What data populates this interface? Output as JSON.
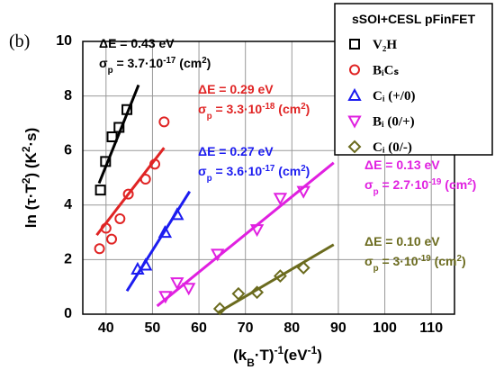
{
  "chart_data": {
    "type": "scatter",
    "panel_label": "(b)",
    "legend_title": "sSOI+CESL pFinFET",
    "legend": "upper right",
    "grid": true,
    "xlim": [
      35,
      115
    ],
    "xticks": [
      40,
      50,
      60,
      70,
      80,
      90,
      100,
      110
    ],
    "ylim": [
      0,
      10
    ],
    "yticks": [
      0,
      2,
      4,
      6,
      8,
      10
    ],
    "x_label": [
      {
        "text": "(k"
      },
      {
        "text": "B",
        "shift": "sub"
      },
      {
        "text": "·T)"
      },
      {
        "text": "-1",
        "shift": "super"
      },
      {
        "text": "(eV"
      },
      {
        "text": "-1",
        "shift": "super"
      },
      {
        "text": ")"
      }
    ],
    "y_label": [
      {
        "text": "ln (τ·T"
      },
      {
        "text": "2",
        "shift": "super"
      },
      {
        "text": ") (K"
      },
      {
        "text": "2",
        "shift": "super"
      },
      {
        "text": "·s)"
      }
    ],
    "series": [
      {
        "name": "V₂H",
        "color": "#000000",
        "marker": "square",
        "x": [
          38.8,
          39.9,
          41.3,
          42.8,
          44.5
        ],
        "values": [
          4.55,
          5.6,
          6.5,
          6.85,
          7.5
        ],
        "fit": {
          "x": [
            38.5,
            47
          ],
          "values": [
            4.8,
            8.4
          ]
        }
      },
      {
        "name": "BᵢCₛ",
        "color": "#e02424",
        "marker": "circle",
        "x": [
          38.6,
          40,
          41.2,
          43,
          44.8,
          48.5,
          50.5,
          52.5
        ],
        "values": [
          2.4,
          3.15,
          2.75,
          3.5,
          4.4,
          4.95,
          5.5,
          7.05
        ],
        "fit": {
          "x": [
            38,
            52.5
          ],
          "values": [
            2.9,
            6.1
          ]
        }
      },
      {
        "name": "Cᵢ (+/0)",
        "color": "#1c1cf0",
        "marker": "triangle-up",
        "x": [
          46.8,
          48.5,
          52.7,
          55.3
        ],
        "values": [
          1.65,
          1.8,
          3.0,
          3.65
        ],
        "fit": {
          "x": [
            44.5,
            58
          ],
          "values": [
            0.85,
            4.5
          ]
        }
      },
      {
        "name": "Bᵢ (0/+)",
        "color": "#e020e0",
        "marker": "triangle-down",
        "x": [
          52.8,
          55.3,
          57.8,
          64,
          72.5,
          77.5,
          82.5
        ],
        "values": [
          0.65,
          1.15,
          0.95,
          2.2,
          3.1,
          4.25,
          4.5
        ],
        "fit": {
          "x": [
            51,
            89
          ],
          "values": [
            0.3,
            5.55
          ]
        }
      },
      {
        "name": "Cᵢ (0/-)",
        "color": "#6b6b1e",
        "marker": "diamond",
        "x": [
          64.5,
          68.5,
          72.5,
          77.5,
          82.5
        ],
        "values": [
          0.2,
          0.75,
          0.8,
          1.4,
          1.7
        ],
        "fit": {
          "x": [
            64,
            89
          ],
          "values": [
            0.05,
            2.55
          ]
        }
      }
    ],
    "annotations": [
      {
        "color": "#000000",
        "lines": [
          [
            {
              "text": "ΔE = 0.43 eV"
            }
          ],
          [
            {
              "text": "σ"
            },
            {
              "text": "p",
              "shift": "sub"
            },
            {
              "text": " = 3.7·10"
            },
            {
              "text": "-17",
              "shift": "super"
            },
            {
              "text": " (cm"
            },
            {
              "text": "2",
              "shift": "super"
            },
            {
              "text": ")"
            }
          ]
        ]
      },
      {
        "color": "#e02424",
        "lines": [
          [
            {
              "text": "ΔE = 0.29 eV"
            }
          ],
          [
            {
              "text": "σ"
            },
            {
              "text": "p",
              "shift": "sub"
            },
            {
              "text": " = 3.3·10"
            },
            {
              "text": "-18",
              "shift": "super"
            },
            {
              "text": " (cm"
            },
            {
              "text": "2",
              "shift": "super"
            },
            {
              "text": ")"
            }
          ]
        ]
      },
      {
        "color": "#1c1cf0",
        "lines": [
          [
            {
              "text": "ΔE = 0.27 eV"
            }
          ],
          [
            {
              "text": "σ"
            },
            {
              "text": "p",
              "shift": "sub"
            },
            {
              "text": " = 3.6·10"
            },
            {
              "text": "-17",
              "shift": "super"
            },
            {
              "text": " (cm"
            },
            {
              "text": "2",
              "shift": "super"
            },
            {
              "text": ")"
            }
          ]
        ]
      },
      {
        "color": "#e020e0",
        "lines": [
          [
            {
              "text": "ΔE = 0.13 eV"
            }
          ],
          [
            {
              "text": "σ"
            },
            {
              "text": "p",
              "shift": "sub"
            },
            {
              "text": " = 2.7·10"
            },
            {
              "text": "-19",
              "shift": "super"
            },
            {
              "text": " (cm"
            },
            {
              "text": "2",
              "shift": "super"
            },
            {
              "text": ")"
            }
          ]
        ]
      },
      {
        "color": "#6b6b1e",
        "lines": [
          [
            {
              "text": "ΔE = 0.10 eV"
            }
          ],
          [
            {
              "text": "σ"
            },
            {
              "text": "p",
              "shift": "sub"
            },
            {
              "text": " = 3·10"
            },
            {
              "text": "-19",
              "shift": "super"
            },
            {
              "text": " (cm"
            },
            {
              "text": "2",
              "shift": "super"
            },
            {
              "text": ")"
            }
          ]
        ]
      }
    ]
  }
}
